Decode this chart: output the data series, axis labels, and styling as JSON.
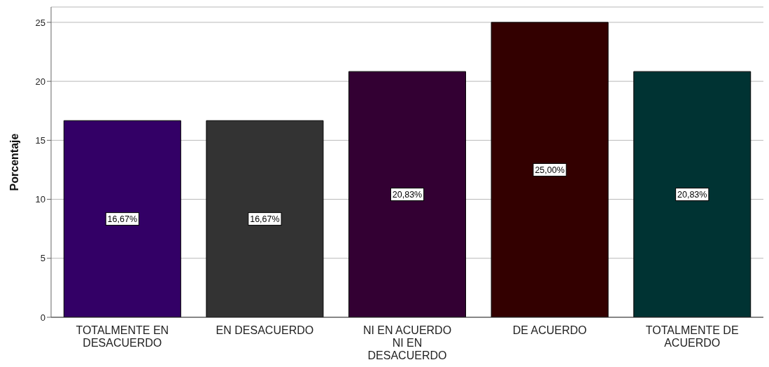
{
  "chart_data": {
    "type": "bar",
    "ylabel": "Porcentaje",
    "categories": [
      "TOTALMENTE EN DESACUERDO",
      "EN DESACUERDO",
      "NI EN ACUERDO NI EN DESACUERDO",
      "DE ACUERDO",
      "TOTALMENTE DE ACUERDO"
    ],
    "values": [
      16.67,
      16.67,
      20.83,
      25,
      20.83
    ],
    "colors": [
      "#330066",
      "#333333",
      "#330033",
      "#330000",
      "#003333"
    ],
    "value_labels": [
      "16,67%",
      "16,67%",
      "20,83%",
      "25,00%",
      "20,83%"
    ],
    "ylim": [
      0,
      26.3
    ],
    "yticks": [
      0,
      5,
      10,
      15,
      20,
      25
    ],
    "grid": "y"
  }
}
